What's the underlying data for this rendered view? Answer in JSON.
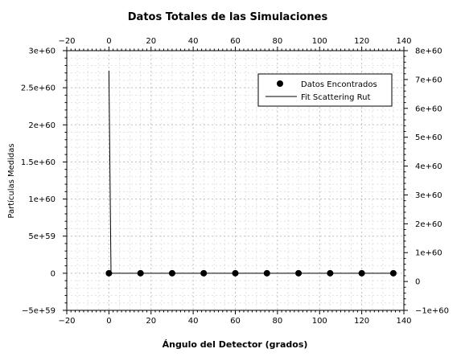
{
  "chart_data": {
    "type": "line",
    "title": "Datos Totales de las Simulaciones",
    "xlabel": "Ángulo del Detector (grados)",
    "ylabel": "Partículas Medidas",
    "xlim": [
      -20,
      140
    ],
    "ylim": [
      -5e+59,
      3e+60
    ],
    "y2lim": [
      -1e+60,
      8e+60
    ],
    "grid": true,
    "legend_position": "top-right",
    "x_ticks": [
      "−20",
      "0",
      "20",
      "40",
      "60",
      "80",
      "100",
      "120",
      "140"
    ],
    "y_ticks": [
      "−5e+59",
      "0",
      "5e+59",
      "1e+60",
      "1.5e+60",
      "2e+60",
      "2.5e+60",
      "3e+60"
    ],
    "y2_ticks": [
      "−1e+60",
      "0",
      "1e+60",
      "2e+60",
      "3e+60",
      "4e+60",
      "5e+60",
      "6e+60",
      "7e+60",
      "8e+60"
    ],
    "series": [
      {
        "name": "Datos Encontrados",
        "style": "markers",
        "color": "#000000",
        "x": [
          0,
          15,
          30,
          45,
          60,
          75,
          90,
          105,
          120,
          135
        ],
        "y": [
          0,
          0,
          0,
          0,
          0,
          0,
          0,
          0,
          0,
          0
        ]
      },
      {
        "name": "Fit Scattering Rut",
        "style": "line",
        "color": "#000000",
        "x": [
          0,
          1,
          15,
          30,
          45,
          60,
          75,
          90,
          105,
          120,
          135
        ],
        "y": [
          2.73e+60,
          0,
          0,
          0,
          0,
          0,
          0,
          0,
          0,
          0,
          0
        ]
      }
    ]
  }
}
